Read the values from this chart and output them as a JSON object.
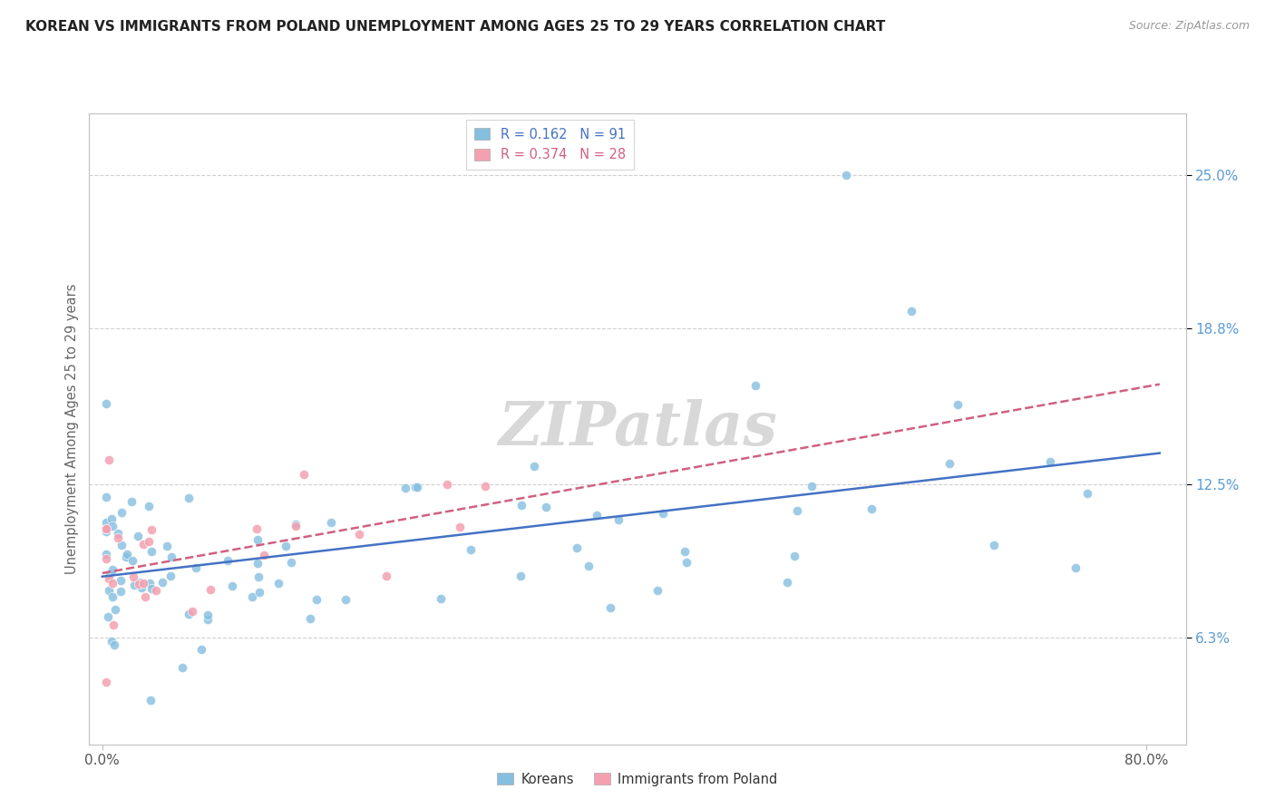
{
  "title": "KOREAN VS IMMIGRANTS FROM POLAND UNEMPLOYMENT AMONG AGES 25 TO 29 YEARS CORRELATION CHART",
  "source": "Source: ZipAtlas.com",
  "ylabel": "Unemployment Among Ages 25 to 29 years",
  "ytick_values": [
    6.3,
    12.5,
    18.8,
    25.0
  ],
  "ymin": 2.0,
  "ymax": 27.5,
  "xmin": -1.0,
  "xmax": 83.0,
  "korean_R": "0.162",
  "korean_N": "91",
  "poland_R": "0.374",
  "poland_N": "28",
  "korean_color": "#85bfe0",
  "poland_color": "#f4a0b0",
  "trend_korean_color": "#4472C4",
  "trend_poland_color": "#d06080",
  "legend_label_korean": "Koreans",
  "legend_label_poland": "Immigrants from Poland",
  "watermark_text": "ZIPatlas",
  "watermark_color": "#d8d8d8",
  "grid_color": "#d0d0d0",
  "spine_color": "#c0c0c0",
  "ytick_color": "#5B9BD5",
  "xtick_color": "#555555",
  "title_color": "#222222",
  "source_color": "#999999",
  "ylabel_color": "#666666"
}
